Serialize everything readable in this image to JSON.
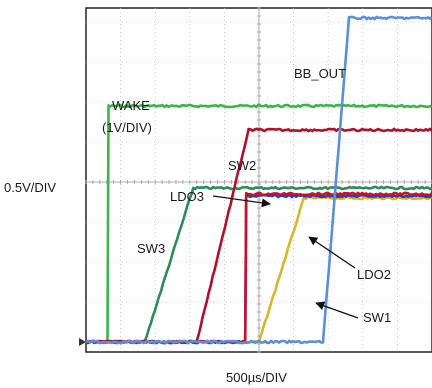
{
  "chart_data": {
    "type": "line",
    "xlabel": "500µs/DIV",
    "ylabel": "0.5V/DIV",
    "grid": true,
    "x_divisions": 10,
    "y_divisions": 8,
    "xlim": [
      0,
      10
    ],
    "ylim": [
      0,
      8
    ],
    "x_unit": "div (500µs/div)",
    "y_unit": "div (0.5V/div)",
    "series": [
      {
        "name": "BB_OUT",
        "color": "#5b8fd6",
        "points": [
          [
            0,
            0
          ],
          [
            6.85,
            0
          ],
          [
            7.6,
            8.1
          ],
          [
            10,
            8.1
          ]
        ]
      },
      {
        "name": "WAKE",
        "color": "#3cb44b",
        "points": [
          [
            0,
            0
          ],
          [
            0.62,
            0
          ],
          [
            0.65,
            5.9
          ],
          [
            10,
            5.9
          ]
        ]
      },
      {
        "name": "SW2",
        "color": "#b0102c",
        "points": [
          [
            0,
            0
          ],
          [
            3.2,
            0
          ],
          [
            4.7,
            5.3
          ],
          [
            10,
            5.3
          ]
        ]
      },
      {
        "name": "SW3",
        "color": "#2e8b57",
        "points": [
          [
            0,
            0
          ],
          [
            1.7,
            0
          ],
          [
            3.1,
            3.85
          ],
          [
            10,
            3.85
          ]
        ]
      },
      {
        "name": "LDO3",
        "color": "#c8102e",
        "points": [
          [
            0,
            0
          ],
          [
            4.6,
            0
          ],
          [
            4.63,
            3.7
          ],
          [
            10,
            3.7
          ]
        ]
      },
      {
        "name": "LDO2",
        "color": "#2a3fb5",
        "points": [
          [
            0,
            0
          ],
          [
            4.6,
            0
          ],
          [
            4.63,
            3.65
          ],
          [
            10,
            3.65
          ]
        ]
      },
      {
        "name": "SW1",
        "color": "#d4b82a",
        "points": [
          [
            0,
            0
          ],
          [
            5.0,
            0
          ],
          [
            6.3,
            3.6
          ],
          [
            10,
            3.6
          ]
        ]
      }
    ],
    "annotations": [
      {
        "text": "BB_OUT"
      },
      {
        "text": "WAKE"
      },
      {
        "text": "(1V/DIV)"
      },
      {
        "text": "SW2"
      },
      {
        "text": "LDO3"
      },
      {
        "text": "SW3"
      },
      {
        "text": "LDO2"
      },
      {
        "text": "SW1"
      }
    ]
  }
}
